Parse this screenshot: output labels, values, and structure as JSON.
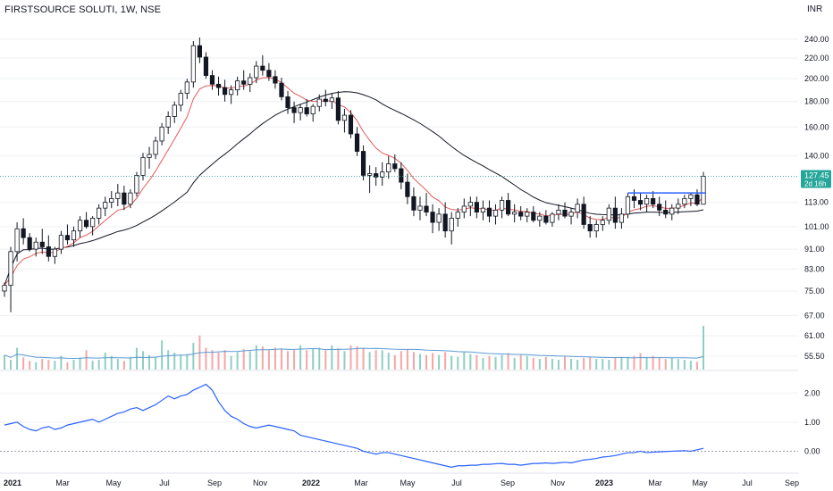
{
  "header": {
    "symbol_title": "FIRSTSOURCE SOLUTI, 1W, NSE",
    "currency": "INR"
  },
  "chart_data": {
    "type": "candlestick",
    "title": "FIRSTSOURCE SOLUTI, 1W, NSE",
    "currency": "INR",
    "log_scale": true,
    "y_ticks": [
      "240.00",
      "220.00",
      "200.00",
      "180.00",
      "160.00",
      "140.00",
      "113.00",
      "101.00",
      "91.00",
      "83.00",
      "75.00",
      "67.00",
      "61.00",
      "55.50"
    ],
    "x_ticks": [
      {
        "label": "2021",
        "bold": true
      },
      {
        "label": "Mar",
        "bold": false
      },
      {
        "label": "May",
        "bold": false
      },
      {
        "label": "Jul",
        "bold": false
      },
      {
        "label": "Sep",
        "bold": false
      },
      {
        "label": "Nov",
        "bold": false
      },
      {
        "label": "2022",
        "bold": true
      },
      {
        "label": "Mar",
        "bold": false
      },
      {
        "label": "May",
        "bold": false
      },
      {
        "label": "Jul",
        "bold": false
      },
      {
        "label": "Sep",
        "bold": false
      },
      {
        "label": "Nov",
        "bold": false
      },
      {
        "label": "2023",
        "bold": true
      },
      {
        "label": "Mar",
        "bold": false
      },
      {
        "label": "May",
        "bold": false
      },
      {
        "label": "Jul",
        "bold": false
      },
      {
        "label": "Sep",
        "bold": false
      }
    ],
    "last_price": {
      "value": "127.45",
      "countdown": "2d 16h",
      "color": "#26a69a"
    },
    "resistance_line": {
      "value": 118,
      "color": "#2962ff"
    },
    "candles": [
      [
        75,
        78,
        73,
        77
      ],
      [
        77,
        92,
        68,
        90
      ],
      [
        90,
        103,
        86,
        100
      ],
      [
        100,
        105,
        93,
        96
      ],
      [
        96,
        98,
        90,
        91
      ],
      [
        91,
        96,
        88,
        94
      ],
      [
        94,
        100,
        89,
        92
      ],
      [
        92,
        97,
        86,
        88
      ],
      [
        88,
        92,
        85,
        91
      ],
      [
        91,
        99,
        89,
        97
      ],
      [
        97,
        102,
        93,
        95
      ],
      [
        95,
        101,
        92,
        99
      ],
      [
        99,
        106,
        96,
        104
      ],
      [
        104,
        108,
        100,
        101
      ],
      [
        101,
        106,
        97,
        105
      ],
      [
        105,
        112,
        102,
        110
      ],
      [
        110,
        116,
        106,
        113
      ],
      [
        113,
        119,
        110,
        115
      ],
      [
        115,
        123,
        111,
        118
      ],
      [
        118,
        122,
        109,
        112
      ],
      [
        112,
        120,
        110,
        118
      ],
      [
        118,
        130,
        116,
        128
      ],
      [
        128,
        142,
        125,
        139
      ],
      [
        139,
        146,
        132,
        141
      ],
      [
        141,
        153,
        138,
        150
      ],
      [
        150,
        163,
        147,
        160
      ],
      [
        160,
        172,
        155,
        168
      ],
      [
        168,
        180,
        163,
        177
      ],
      [
        177,
        190,
        172,
        187
      ],
      [
        187,
        200,
        182,
        197
      ],
      [
        197,
        238,
        192,
        233
      ],
      [
        233,
        242,
        215,
        221
      ],
      [
        221,
        226,
        200,
        203
      ],
      [
        203,
        208,
        190,
        195
      ],
      [
        195,
        202,
        185,
        192
      ],
      [
        192,
        199,
        180,
        186
      ],
      [
        186,
        194,
        178,
        190
      ],
      [
        190,
        202,
        185,
        198
      ],
      [
        198,
        208,
        190,
        195
      ],
      [
        195,
        205,
        188,
        201
      ],
      [
        201,
        217,
        196,
        212
      ],
      [
        212,
        223,
        203,
        208
      ],
      [
        208,
        215,
        198,
        202
      ],
      [
        202,
        208,
        191,
        196
      ],
      [
        196,
        201,
        181,
        184
      ],
      [
        184,
        189,
        170,
        175
      ],
      [
        175,
        180,
        163,
        171
      ],
      [
        171,
        178,
        165,
        175
      ],
      [
        175,
        182,
        168,
        170
      ],
      [
        170,
        178,
        164,
        176
      ],
      [
        176,
        186,
        172,
        182
      ],
      [
        182,
        190,
        176,
        180
      ],
      [
        180,
        187,
        174,
        183
      ],
      [
        183,
        189,
        162,
        165
      ],
      [
        165,
        174,
        156,
        169
      ],
      [
        169,
        173,
        152,
        155
      ],
      [
        155,
        160,
        140,
        143
      ],
      [
        143,
        147,
        125,
        128
      ],
      [
        128,
        134,
        118,
        129
      ],
      [
        129,
        133,
        122,
        127
      ],
      [
        127,
        136,
        122,
        130
      ],
      [
        130,
        140,
        126,
        135
      ],
      [
        135,
        141,
        130,
        132
      ],
      [
        132,
        136,
        120,
        124
      ],
      [
        124,
        129,
        112,
        116
      ],
      [
        116,
        121,
        106,
        109
      ],
      [
        109,
        116,
        104,
        111
      ],
      [
        111,
        118,
        106,
        108
      ],
      [
        108,
        112,
        98,
        103
      ],
      [
        103,
        110,
        99,
        107
      ],
      [
        107,
        113,
        96,
        99
      ],
      [
        99,
        108,
        93,
        105
      ],
      [
        105,
        110,
        101,
        108
      ],
      [
        108,
        115,
        105,
        111
      ],
      [
        111,
        116,
        106,
        113
      ],
      [
        113,
        116,
        105,
        108
      ],
      [
        108,
        114,
        104,
        110
      ],
      [
        110,
        114,
        103,
        106
      ],
      [
        106,
        112,
        102,
        109
      ],
      [
        109,
        116,
        105,
        114
      ],
      [
        114,
        118,
        106,
        107
      ],
      [
        107,
        112,
        103,
        108
      ],
      [
        108,
        111,
        104,
        106
      ],
      [
        106,
        110,
        103,
        108
      ],
      [
        108,
        111,
        103,
        104
      ],
      [
        104,
        108,
        101,
        106
      ],
      [
        106,
        109,
        102,
        103
      ],
      [
        103,
        108,
        101,
        107
      ],
      [
        107,
        112,
        104,
        109
      ],
      [
        109,
        113,
        105,
        106
      ],
      [
        106,
        110,
        102,
        108
      ],
      [
        108,
        115,
        105,
        112
      ],
      [
        112,
        116,
        100,
        102
      ],
      [
        102,
        106,
        96,
        99
      ],
      [
        99,
        104,
        96,
        102
      ],
      [
        102,
        106,
        99,
        104
      ],
      [
        104,
        112,
        102,
        110
      ],
      [
        110,
        116,
        100,
        103
      ],
      [
        103,
        110,
        100,
        107
      ],
      [
        107,
        118,
        105,
        116
      ],
      [
        116,
        120,
        110,
        114
      ],
      [
        114,
        118,
        109,
        112
      ],
      [
        112,
        117,
        108,
        115
      ],
      [
        115,
        119,
        110,
        112
      ],
      [
        112,
        116,
        106,
        109
      ],
      [
        109,
        114,
        105,
        107
      ],
      [
        107,
        112,
        104,
        110
      ],
      [
        110,
        115,
        107,
        112
      ],
      [
        112,
        117,
        110,
        115
      ],
      [
        115,
        118,
        111,
        117
      ],
      [
        117,
        120,
        111,
        112
      ],
      [
        112,
        130,
        112,
        127.45
      ]
    ],
    "ema_red": "short moving average (red)",
    "ma_black": "long moving average (black)",
    "volume": {
      "scale_note": "relative",
      "values": [
        30,
        20,
        45,
        25,
        18,
        15,
        22,
        20,
        18,
        28,
        15,
        20,
        25,
        40,
        18,
        20,
        35,
        28,
        22,
        18,
        26,
        45,
        38,
        30,
        25,
        60,
        40,
        35,
        30,
        32,
        55,
        70,
        45,
        40,
        35,
        40,
        28,
        36,
        42,
        38,
        50,
        48,
        40,
        45,
        42,
        38,
        40,
        50,
        40,
        42,
        45,
        40,
        50,
        44,
        38,
        50,
        48,
        45,
        36,
        40,
        40,
        35,
        30,
        38,
        42,
        36,
        32,
        30,
        34,
        30,
        36,
        28,
        26,
        36,
        32,
        30,
        24,
        28,
        26,
        30,
        34,
        24,
        30,
        28,
        24,
        22,
        26,
        22,
        20,
        28,
        22,
        20,
        24,
        26,
        22,
        22,
        20,
        24,
        26,
        26,
        28,
        34,
        26,
        28,
        24,
        22,
        24,
        22,
        20,
        18,
        16,
        90
      ],
      "avg_color": "#5b9bd5",
      "up_color": "#8ecfc2",
      "down_color": "#f4a6a6"
    },
    "oscillator": {
      "y_ticks": [
        "2.00",
        "1.00",
        "0.00"
      ],
      "zero_line": 0,
      "color": "#2962ff",
      "values": [
        0.9,
        0.95,
        1.0,
        0.85,
        0.75,
        0.7,
        0.8,
        0.85,
        0.75,
        0.8,
        0.9,
        0.95,
        1.0,
        1.05,
        1.1,
        1.0,
        1.1,
        1.2,
        1.3,
        1.35,
        1.45,
        1.5,
        1.4,
        1.5,
        1.6,
        1.75,
        1.9,
        1.8,
        1.9,
        1.95,
        2.1,
        2.2,
        2.3,
        2.1,
        1.7,
        1.4,
        1.2,
        1.1,
        0.95,
        0.85,
        0.8,
        0.85,
        0.9,
        0.85,
        0.8,
        0.75,
        0.7,
        0.55,
        0.5,
        0.45,
        0.4,
        0.35,
        0.3,
        0.25,
        0.2,
        0.15,
        0.1,
        0.0,
        -0.05,
        -0.1,
        -0.05,
        -0.05,
        -0.1,
        -0.15,
        -0.2,
        -0.25,
        -0.3,
        -0.35,
        -0.4,
        -0.45,
        -0.5,
        -0.55,
        -0.5,
        -0.5,
        -0.48,
        -0.48,
        -0.45,
        -0.45,
        -0.43,
        -0.42,
        -0.45,
        -0.45,
        -0.48,
        -0.45,
        -0.42,
        -0.42,
        -0.4,
        -0.42,
        -0.4,
        -0.38,
        -0.4,
        -0.35,
        -0.3,
        -0.28,
        -0.25,
        -0.2,
        -0.18,
        -0.15,
        -0.1,
        -0.05,
        -0.05,
        0.0,
        -0.05,
        -0.03,
        -0.02,
        -0.01,
        0.0,
        0.01,
        0.02,
        0.0,
        0.05,
        0.1
      ]
    }
  }
}
